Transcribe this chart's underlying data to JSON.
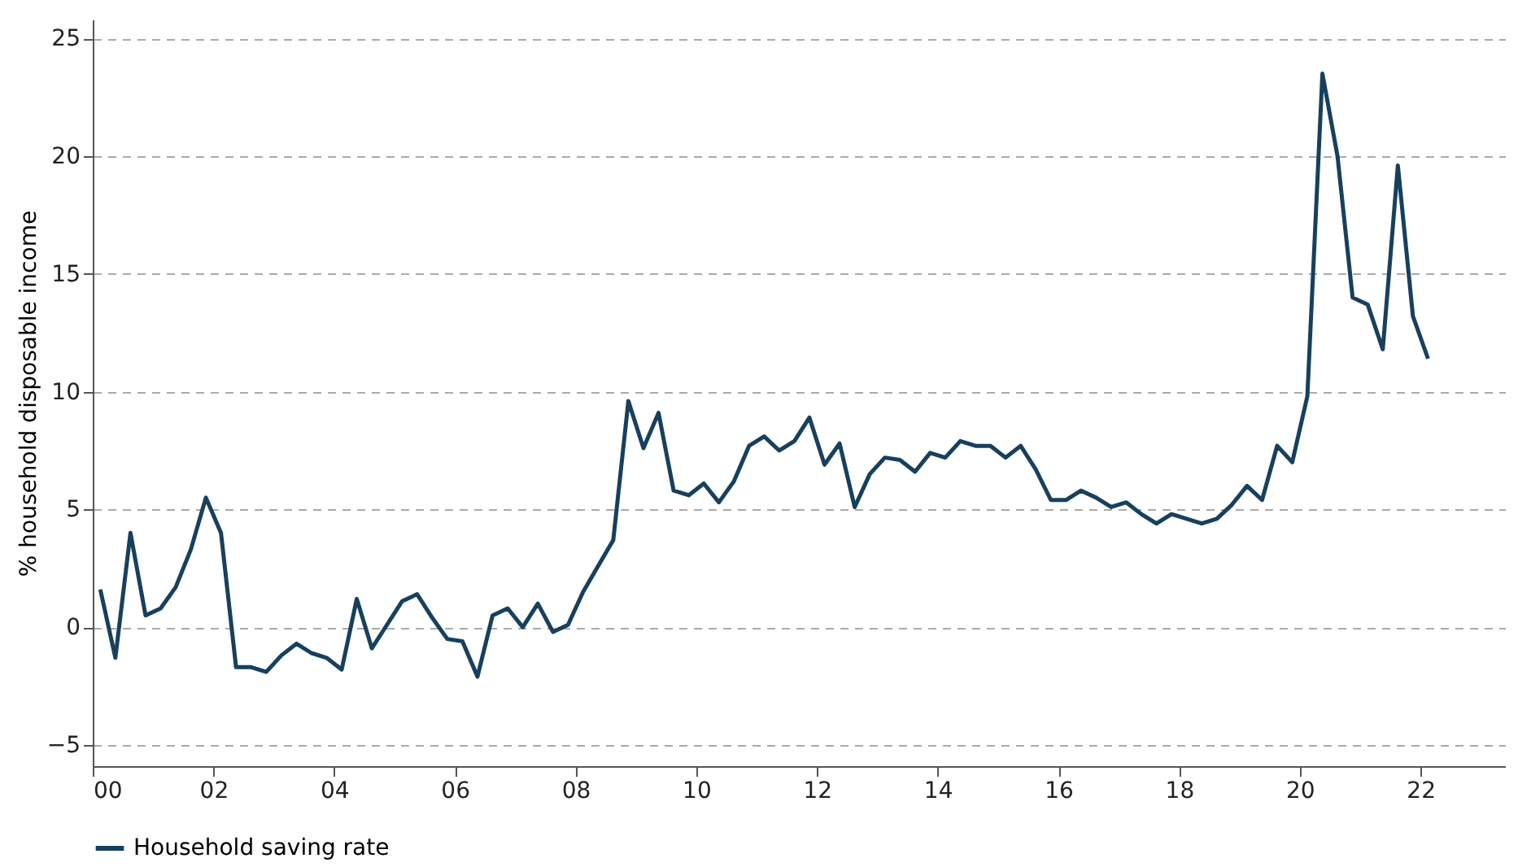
{
  "chart_data": {
    "type": "line",
    "ylabel": "% household disposable income",
    "x": [
      0.125,
      0.375,
      0.625,
      0.875,
      1.125,
      1.375,
      1.625,
      1.875,
      2.125,
      2.375,
      2.625,
      2.875,
      3.125,
      3.375,
      3.625,
      3.875,
      4.125,
      4.375,
      4.625,
      4.875,
      5.125,
      5.375,
      5.625,
      5.875,
      6.125,
      6.375,
      6.625,
      6.875,
      7.125,
      7.375,
      7.625,
      7.875,
      8.125,
      8.375,
      8.625,
      8.875,
      9.125,
      9.375,
      9.625,
      9.875,
      10.125,
      10.375,
      10.625,
      10.875,
      11.125,
      11.375,
      11.625,
      11.875,
      12.125,
      12.375,
      12.625,
      12.875,
      13.125,
      13.375,
      13.625,
      13.875,
      14.125,
      14.375,
      14.625,
      14.875,
      15.125,
      15.375,
      15.625,
      15.875,
      16.125,
      16.375,
      16.625,
      16.875,
      17.125,
      17.375,
      17.625,
      17.875,
      18.125,
      18.375,
      18.625,
      18.875,
      19.125,
      19.375,
      19.625,
      19.875,
      20.125,
      20.375,
      20.625,
      20.875,
      21.125,
      21.375,
      21.625,
      21.875,
      22.125
    ],
    "series": [
      {
        "name": "Household saving rate",
        "color": "#17405e",
        "values": [
          1.6,
          -1.3,
          4.0,
          0.5,
          0.8,
          1.7,
          3.3,
          5.5,
          4.0,
          -1.7,
          -1.7,
          -1.9,
          -1.2,
          -0.7,
          -1.1,
          -1.3,
          -1.8,
          1.2,
          -0.9,
          0.1,
          1.1,
          1.4,
          0.4,
          -0.5,
          -0.6,
          -2.1,
          0.5,
          0.8,
          0.0,
          1.0,
          -0.2,
          0.1,
          1.5,
          2.6,
          3.7,
          9.6,
          7.6,
          9.1,
          5.8,
          5.6,
          6.1,
          5.3,
          6.2,
          7.7,
          8.1,
          7.5,
          7.9,
          8.9,
          6.9,
          7.8,
          5.1,
          6.5,
          7.2,
          7.1,
          6.6,
          7.4,
          7.2,
          7.9,
          7.7,
          7.7,
          7.2,
          7.7,
          6.7,
          5.4,
          5.4,
          5.8,
          5.5,
          5.1,
          5.3,
          4.8,
          4.4,
          4.8,
          4.6,
          4.4,
          4.6,
          5.2,
          6.0,
          5.4,
          7.7,
          7.0,
          9.8,
          23.5,
          20.0,
          14.0,
          13.7,
          11.8,
          19.6,
          13.2,
          11.4
        ]
      }
    ],
    "xlim": [
      0,
      23.4
    ],
    "ylim": [
      -5.9,
      25.8
    ],
    "xticks": [
      {
        "value": 0,
        "label": "00"
      },
      {
        "value": 2,
        "label": "02"
      },
      {
        "value": 4,
        "label": "04"
      },
      {
        "value": 6,
        "label": "06"
      },
      {
        "value": 8,
        "label": "08"
      },
      {
        "value": 10,
        "label": "10"
      },
      {
        "value": 12,
        "label": "12"
      },
      {
        "value": 14,
        "label": "14"
      },
      {
        "value": 16,
        "label": "16"
      },
      {
        "value": 18,
        "label": "18"
      },
      {
        "value": 20,
        "label": "20"
      },
      {
        "value": 22,
        "label": "22"
      }
    ],
    "yticks": [
      -5,
      0,
      5,
      10,
      15,
      20,
      25
    ],
    "grid": "y",
    "legend": "bottom",
    "marker": "none",
    "line_style": "solid"
  }
}
